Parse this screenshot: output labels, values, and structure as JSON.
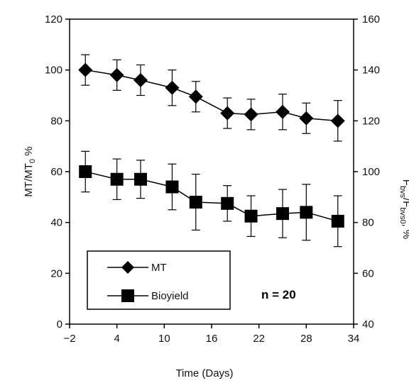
{
  "chart_data": {
    "type": "line",
    "xlabel": "Time (Days)",
    "ylabel_left": {
      "main": "MT/MT",
      "sub": "0",
      "tail": " %"
    },
    "ylabel_right": {
      "p1": "F",
      "s1": "bvs",
      "p2": "/F",
      "s2": "bvs0",
      "tail": ", %"
    },
    "xlim": [
      -2,
      34
    ],
    "xticks": [
      -2,
      4,
      10,
      16,
      22,
      28,
      34
    ],
    "xtick_labels": [
      "−2",
      "4",
      "10",
      "16",
      "22",
      "28",
      "34"
    ],
    "ylim_left": [
      0,
      120
    ],
    "yticks_left": [
      0,
      20,
      40,
      60,
      80,
      100,
      120
    ],
    "ylim_right": [
      40,
      160
    ],
    "yticks_right": [
      40,
      60,
      80,
      100,
      120,
      140,
      160
    ],
    "legend_position": "bottom-left",
    "annotation": "n = 20",
    "series": [
      {
        "name": "MT",
        "marker": "diamond",
        "axis": "left",
        "x": [
          0,
          4,
          7,
          11,
          14,
          18,
          21,
          25,
          28,
          32
        ],
        "y": [
          100,
          98,
          96,
          93,
          89.5,
          83,
          82.5,
          83.5,
          81,
          80
        ],
        "err": [
          6,
          6,
          6,
          7,
          6,
          6,
          6,
          7,
          6,
          8
        ]
      },
      {
        "name": "Bioyield",
        "marker": "square",
        "axis": "left",
        "x": [
          0,
          4,
          7,
          11,
          14,
          18,
          21,
          25,
          28,
          32
        ],
        "y": [
          60,
          57,
          57,
          54,
          48,
          47.5,
          42.5,
          43.5,
          44,
          40.5
        ],
        "err": [
          8,
          8,
          7.5,
          9,
          11,
          7,
          8,
          9.5,
          11,
          10
        ]
      }
    ]
  }
}
